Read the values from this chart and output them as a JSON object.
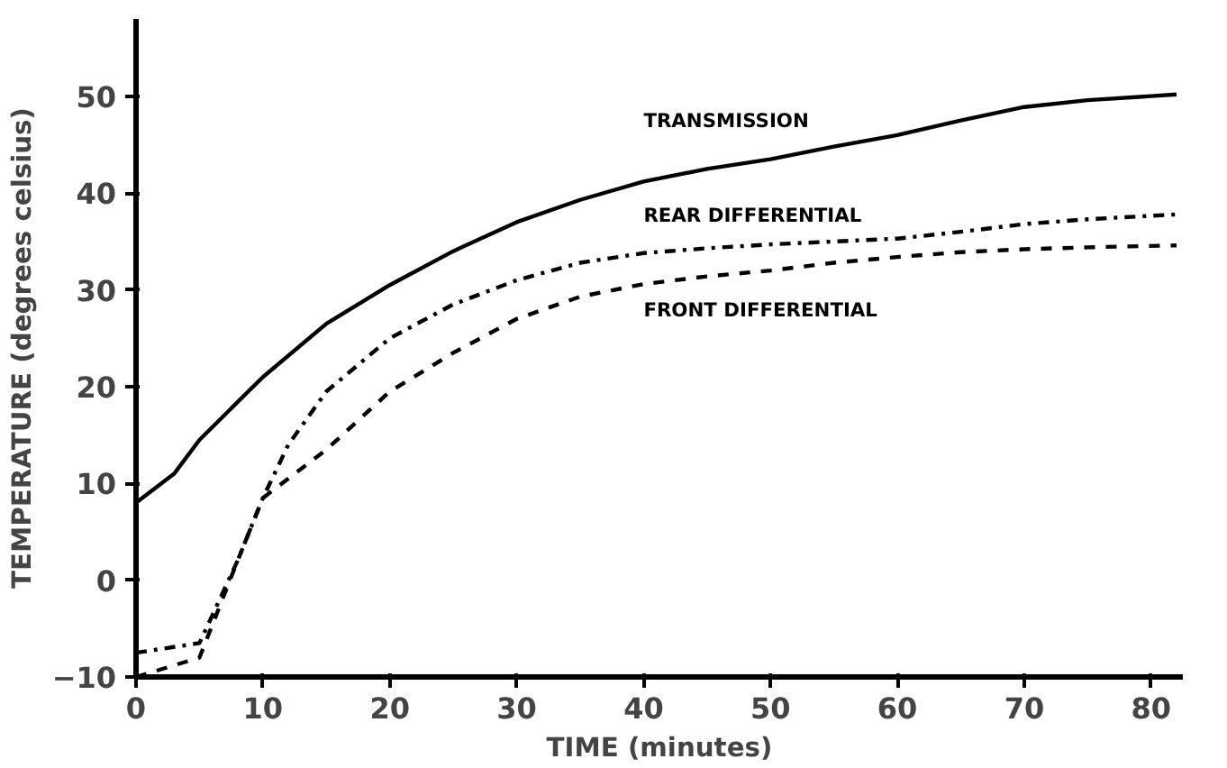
{
  "chart_data": {
    "type": "line",
    "xlabel": "TIME (minutes)",
    "ylabel": "TEMPERATURE (degrees celsius)",
    "xlim": [
      0,
      82.5
    ],
    "ylim": [
      -10,
      58
    ],
    "xticks": [
      0,
      10,
      20,
      30,
      40,
      50,
      60,
      70,
      80
    ],
    "yticks": [
      -10,
      0,
      10,
      20,
      30,
      40,
      50
    ],
    "grid": false,
    "legend": false,
    "marker": "none",
    "series": [
      {
        "name": "TRANSMISSION",
        "color": "#000000",
        "line_style": "solid",
        "x": [
          0,
          3,
          5,
          10,
          15,
          20,
          25,
          30,
          35,
          40,
          45,
          50,
          55,
          60,
          65,
          70,
          75,
          82
        ],
        "values": [
          8,
          11,
          14.5,
          21,
          26.5,
          30.5,
          34,
          37,
          39.3,
          41.2,
          42.5,
          43.5,
          44.8,
          46,
          47.5,
          48.9,
          49.6,
          50.2
        ]
      },
      {
        "name": "REAR DIFFERENTIAL",
        "color": "#000000",
        "line_style": "dashdot",
        "x": [
          0,
          5,
          8,
          10,
          12,
          15,
          20,
          25,
          30,
          35,
          40,
          45,
          50,
          55,
          60,
          65,
          70,
          75,
          82
        ],
        "values": [
          -7.5,
          -6.5,
          2,
          8.5,
          14,
          19.5,
          25,
          28.5,
          31,
          32.8,
          33.8,
          34.3,
          34.7,
          35,
          35.3,
          36,
          36.8,
          37.3,
          37.8
        ]
      },
      {
        "name": "FRONT DIFFERENTIAL",
        "color": "#000000",
        "line_style": "dashed",
        "x": [
          0,
          5,
          8,
          10,
          15,
          20,
          25,
          30,
          35,
          40,
          45,
          50,
          55,
          60,
          65,
          70,
          75,
          82
        ],
        "values": [
          -10,
          -8,
          2,
          8.5,
          13.5,
          19.5,
          23.5,
          27,
          29.3,
          30.6,
          31.4,
          32,
          32.8,
          33.4,
          33.9,
          34.2,
          34.4,
          34.6
        ]
      }
    ]
  }
}
